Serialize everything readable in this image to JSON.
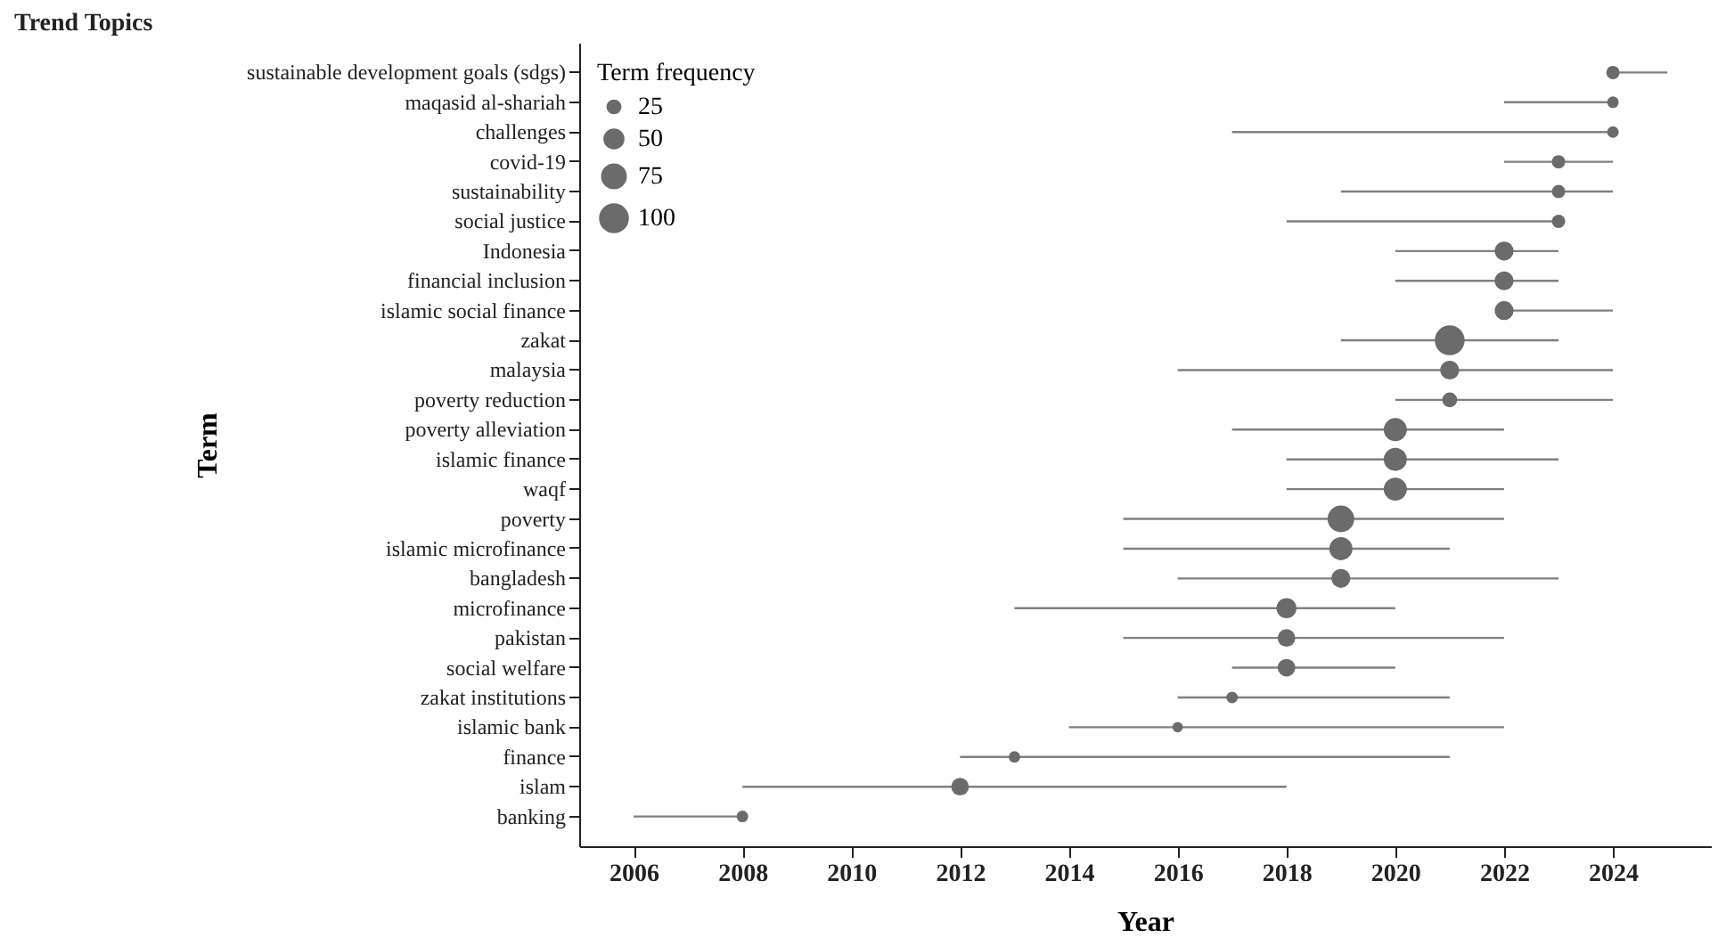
{
  "chart_data": {
    "type": "bubble",
    "orientation": "horizontal",
    "title": "Trend Topics",
    "xlabel": "Year",
    "ylabel": "Term",
    "legend_title": "Term frequency",
    "color": "#6b6b6b",
    "categories": [
      "sustainable development goals (sdgs)",
      "maqasid al-shariah",
      "challenges",
      "covid-19",
      "sustainability",
      "social justice",
      "Indonesia",
      "financial inclusion",
      "islamic social finance",
      "zakat",
      "malaysia",
      "poverty reduction",
      "poverty alleviation",
      "islamic finance",
      "waqf",
      "poverty",
      "islamic microfinance",
      "bangladesh",
      "microfinance",
      "pakistan",
      "social welfare",
      "zakat institutions",
      "islamic bank",
      "finance",
      "islam",
      "banking"
    ],
    "values": [
      2024,
      2024,
      2024,
      2023,
      2023,
      2023,
      2022,
      2022,
      2022,
      2021,
      2021,
      2021,
      2020,
      2020,
      2020,
      2019,
      2019,
      2019,
      2018,
      2018,
      2018,
      2017,
      2016,
      2013,
      2012,
      2008
    ],
    "errors": [
      [
        2024,
        2025
      ],
      [
        2022,
        2024
      ],
      [
        2017,
        2024
      ],
      [
        2022,
        2024
      ],
      [
        2019,
        2024
      ],
      [
        2018,
        2023
      ],
      [
        2020,
        2023
      ],
      [
        2020,
        2023
      ],
      [
        2022,
        2024
      ],
      [
        2019,
        2023
      ],
      [
        2016,
        2024
      ],
      [
        2020,
        2024
      ],
      [
        2017,
        2022
      ],
      [
        2018,
        2023
      ],
      [
        2018,
        2022
      ],
      [
        2015,
        2022
      ],
      [
        2015,
        2021
      ],
      [
        2016,
        2023
      ],
      [
        2013,
        2020
      ],
      [
        2015,
        2022
      ],
      [
        2017,
        2020
      ],
      [
        2016,
        2021
      ],
      [
        2014,
        2022
      ],
      [
        2012,
        2021
      ],
      [
        2008,
        2018
      ],
      [
        2006,
        2008
      ]
    ],
    "sizes": [
      20,
      15,
      15,
      20,
      20,
      20,
      40,
      40,
      40,
      100,
      40,
      25,
      60,
      60,
      60,
      80,
      60,
      40,
      45,
      35,
      35,
      15,
      12,
      15,
      35,
      15
    ],
    "size_legend": [
      25,
      50,
      75,
      100
    ],
    "xlim": [
      2005,
      2025.8
    ],
    "xticks": [
      2006,
      2008,
      2010,
      2012,
      2014,
      2016,
      2018,
      2020,
      2022,
      2024
    ]
  }
}
